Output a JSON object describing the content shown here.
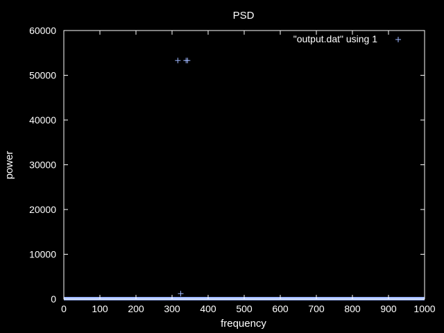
{
  "chart_data": {
    "type": "scatter",
    "title": "PSD",
    "xlabel": "frequency",
    "ylabel": "power",
    "xlim": [
      0,
      1000
    ],
    "ylim": [
      0,
      60000
    ],
    "xticks": [
      0,
      100,
      200,
      300,
      400,
      500,
      600,
      700,
      800,
      900,
      1000
    ],
    "yticks": [
      0,
      10000,
      20000,
      30000,
      40000,
      50000,
      60000
    ],
    "grid": false,
    "background": "#000000",
    "axis_color": "#ffffff",
    "legend_position": "top-right",
    "series": [
      {
        "name": "\"output.dat\" using 1",
        "marker": "plus",
        "color": "#a0b8ff",
        "points": [
          [
            316,
            53300
          ],
          [
            339,
            53300
          ],
          [
            343,
            53300
          ],
          [
            324,
            1200
          ]
        ],
        "baseline": {
          "x_start": 0,
          "x_end": 1000,
          "y": 0,
          "note_values_near_zero": true
        }
      }
    ]
  }
}
